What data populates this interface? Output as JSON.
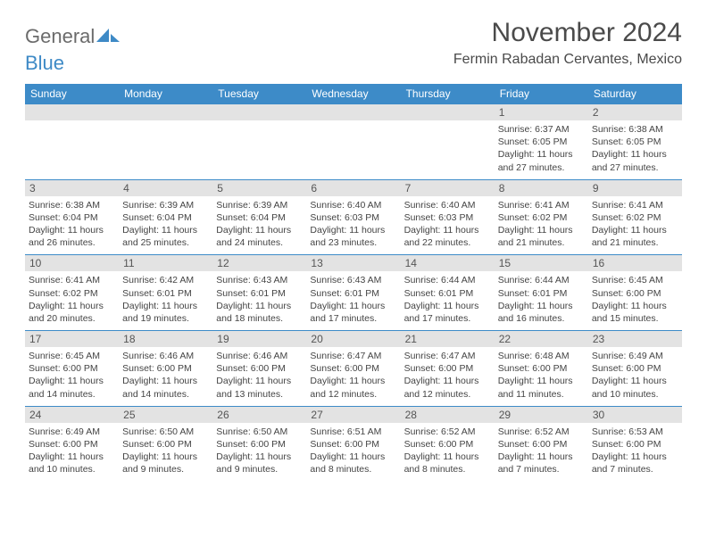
{
  "logo": {
    "text1": "General",
    "text2": "Blue"
  },
  "title": "November 2024",
  "location": "Fermin Rabadan Cervantes, Mexico",
  "colors": {
    "header_bg": "#3d8bc8",
    "header_fg": "#ffffff",
    "daynum_bg": "#e3e3e3",
    "border": "#3d8bc8",
    "logo_gray": "#6b6b6b",
    "logo_blue": "#3e8ac6"
  },
  "day_names": [
    "Sunday",
    "Monday",
    "Tuesday",
    "Wednesday",
    "Thursday",
    "Friday",
    "Saturday"
  ],
  "weeks": [
    [
      {
        "empty": true
      },
      {
        "empty": true
      },
      {
        "empty": true
      },
      {
        "empty": true
      },
      {
        "empty": true
      },
      {
        "n": "1",
        "sunrise": "Sunrise: 6:37 AM",
        "sunset": "Sunset: 6:05 PM",
        "daylight": "Daylight: 11 hours and 27 minutes."
      },
      {
        "n": "2",
        "sunrise": "Sunrise: 6:38 AM",
        "sunset": "Sunset: 6:05 PM",
        "daylight": "Daylight: 11 hours and 27 minutes."
      }
    ],
    [
      {
        "n": "3",
        "sunrise": "Sunrise: 6:38 AM",
        "sunset": "Sunset: 6:04 PM",
        "daylight": "Daylight: 11 hours and 26 minutes."
      },
      {
        "n": "4",
        "sunrise": "Sunrise: 6:39 AM",
        "sunset": "Sunset: 6:04 PM",
        "daylight": "Daylight: 11 hours and 25 minutes."
      },
      {
        "n": "5",
        "sunrise": "Sunrise: 6:39 AM",
        "sunset": "Sunset: 6:04 PM",
        "daylight": "Daylight: 11 hours and 24 minutes."
      },
      {
        "n": "6",
        "sunrise": "Sunrise: 6:40 AM",
        "sunset": "Sunset: 6:03 PM",
        "daylight": "Daylight: 11 hours and 23 minutes."
      },
      {
        "n": "7",
        "sunrise": "Sunrise: 6:40 AM",
        "sunset": "Sunset: 6:03 PM",
        "daylight": "Daylight: 11 hours and 22 minutes."
      },
      {
        "n": "8",
        "sunrise": "Sunrise: 6:41 AM",
        "sunset": "Sunset: 6:02 PM",
        "daylight": "Daylight: 11 hours and 21 minutes."
      },
      {
        "n": "9",
        "sunrise": "Sunrise: 6:41 AM",
        "sunset": "Sunset: 6:02 PM",
        "daylight": "Daylight: 11 hours and 21 minutes."
      }
    ],
    [
      {
        "n": "10",
        "sunrise": "Sunrise: 6:41 AM",
        "sunset": "Sunset: 6:02 PM",
        "daylight": "Daylight: 11 hours and 20 minutes."
      },
      {
        "n": "11",
        "sunrise": "Sunrise: 6:42 AM",
        "sunset": "Sunset: 6:01 PM",
        "daylight": "Daylight: 11 hours and 19 minutes."
      },
      {
        "n": "12",
        "sunrise": "Sunrise: 6:43 AM",
        "sunset": "Sunset: 6:01 PM",
        "daylight": "Daylight: 11 hours and 18 minutes."
      },
      {
        "n": "13",
        "sunrise": "Sunrise: 6:43 AM",
        "sunset": "Sunset: 6:01 PM",
        "daylight": "Daylight: 11 hours and 17 minutes."
      },
      {
        "n": "14",
        "sunrise": "Sunrise: 6:44 AM",
        "sunset": "Sunset: 6:01 PM",
        "daylight": "Daylight: 11 hours and 17 minutes."
      },
      {
        "n": "15",
        "sunrise": "Sunrise: 6:44 AM",
        "sunset": "Sunset: 6:01 PM",
        "daylight": "Daylight: 11 hours and 16 minutes."
      },
      {
        "n": "16",
        "sunrise": "Sunrise: 6:45 AM",
        "sunset": "Sunset: 6:00 PM",
        "daylight": "Daylight: 11 hours and 15 minutes."
      }
    ],
    [
      {
        "n": "17",
        "sunrise": "Sunrise: 6:45 AM",
        "sunset": "Sunset: 6:00 PM",
        "daylight": "Daylight: 11 hours and 14 minutes."
      },
      {
        "n": "18",
        "sunrise": "Sunrise: 6:46 AM",
        "sunset": "Sunset: 6:00 PM",
        "daylight": "Daylight: 11 hours and 14 minutes."
      },
      {
        "n": "19",
        "sunrise": "Sunrise: 6:46 AM",
        "sunset": "Sunset: 6:00 PM",
        "daylight": "Daylight: 11 hours and 13 minutes."
      },
      {
        "n": "20",
        "sunrise": "Sunrise: 6:47 AM",
        "sunset": "Sunset: 6:00 PM",
        "daylight": "Daylight: 11 hours and 12 minutes."
      },
      {
        "n": "21",
        "sunrise": "Sunrise: 6:47 AM",
        "sunset": "Sunset: 6:00 PM",
        "daylight": "Daylight: 11 hours and 12 minutes."
      },
      {
        "n": "22",
        "sunrise": "Sunrise: 6:48 AM",
        "sunset": "Sunset: 6:00 PM",
        "daylight": "Daylight: 11 hours and 11 minutes."
      },
      {
        "n": "23",
        "sunrise": "Sunrise: 6:49 AM",
        "sunset": "Sunset: 6:00 PM",
        "daylight": "Daylight: 11 hours and 10 minutes."
      }
    ],
    [
      {
        "n": "24",
        "sunrise": "Sunrise: 6:49 AM",
        "sunset": "Sunset: 6:00 PM",
        "daylight": "Daylight: 11 hours and 10 minutes."
      },
      {
        "n": "25",
        "sunrise": "Sunrise: 6:50 AM",
        "sunset": "Sunset: 6:00 PM",
        "daylight": "Daylight: 11 hours and 9 minutes."
      },
      {
        "n": "26",
        "sunrise": "Sunrise: 6:50 AM",
        "sunset": "Sunset: 6:00 PM",
        "daylight": "Daylight: 11 hours and 9 minutes."
      },
      {
        "n": "27",
        "sunrise": "Sunrise: 6:51 AM",
        "sunset": "Sunset: 6:00 PM",
        "daylight": "Daylight: 11 hours and 8 minutes."
      },
      {
        "n": "28",
        "sunrise": "Sunrise: 6:52 AM",
        "sunset": "Sunset: 6:00 PM",
        "daylight": "Daylight: 11 hours and 8 minutes."
      },
      {
        "n": "29",
        "sunrise": "Sunrise: 6:52 AM",
        "sunset": "Sunset: 6:00 PM",
        "daylight": "Daylight: 11 hours and 7 minutes."
      },
      {
        "n": "30",
        "sunrise": "Sunrise: 6:53 AM",
        "sunset": "Sunset: 6:00 PM",
        "daylight": "Daylight: 11 hours and 7 minutes."
      }
    ]
  ]
}
